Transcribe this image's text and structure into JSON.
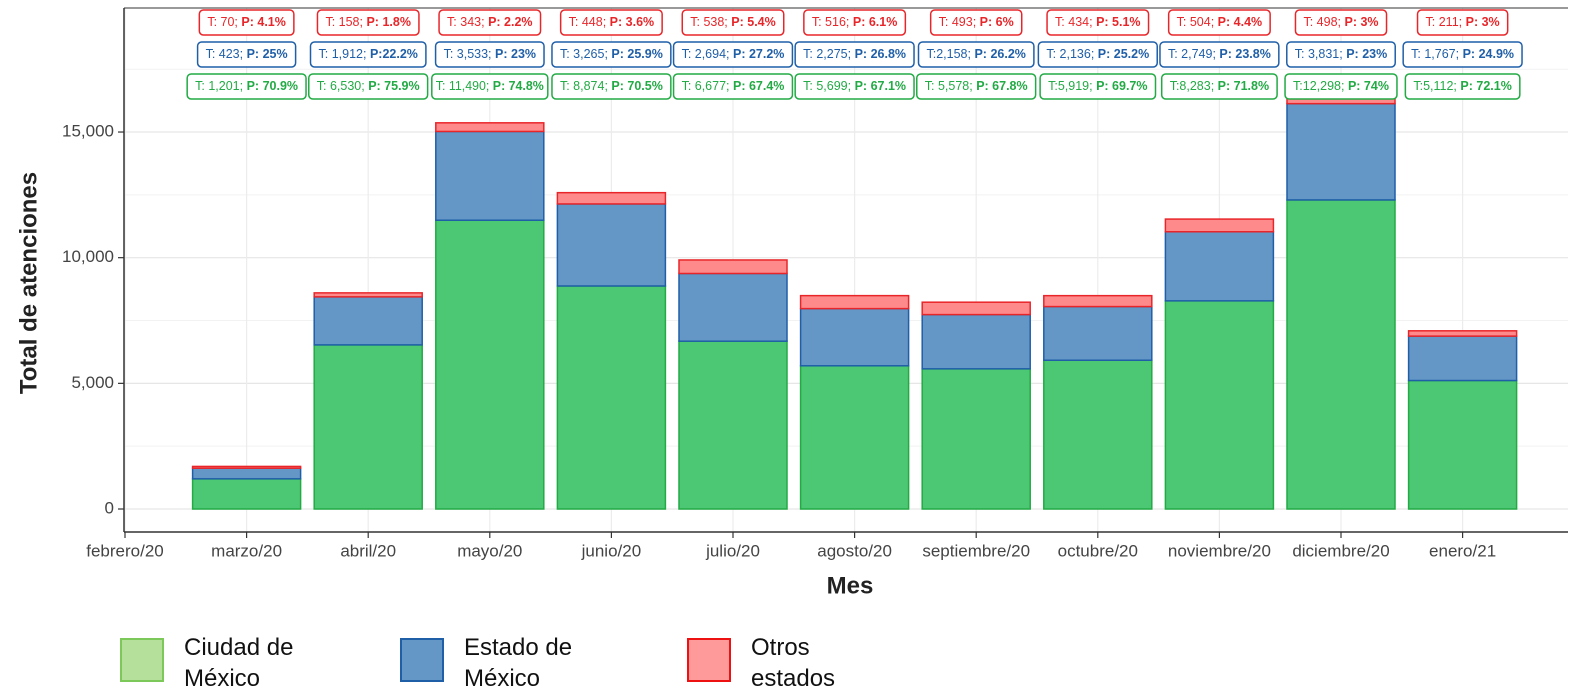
{
  "chart_data": {
    "type": "stacked_bar",
    "x_label": "Mes",
    "y_label": "Total de atenciones",
    "categories": [
      "febrero/20",
      "marzo/20",
      "abril/20",
      "mayo/20",
      "junio/20",
      "julio/20",
      "agosto/20",
      "septiembre/20",
      "octubre/20",
      "noviembre/20",
      "diciembre/20",
      "enero/21"
    ],
    "ylim": [
      -915,
      19935
    ],
    "yticks": [
      0,
      {
        "value": 5000,
        "label": "5,000"
      },
      {
        "value": 10000,
        "label": "10,000"
      },
      {
        "value": 15000,
        "label": "15,000"
      }
    ],
    "yminorticks": [
      2500,
      7500,
      12500,
      17500
    ],
    "grid": true,
    "legend": "bottom",
    "series": [
      {
        "name": "Ciudad de México",
        "color": "#4cc874",
        "stroke": "#22aa44",
        "legend_color": "#b5e09b",
        "legend_stroke": "#7cc95a",
        "values": [
          null,
          1201,
          6530,
          11490,
          8874,
          6677,
          5699,
          5578,
          5919,
          8283,
          12298,
          5112
        ],
        "value_labels": [
          null,
          "T: 1,201;",
          "T: 6,530;",
          "T: 11,490;",
          "T: 8,874;",
          "T: 6,677;",
          "T: 5,699;",
          "T: 5,578;",
          "T:5,919;",
          "T:8,283;",
          "T:12,298;",
          "T:5,112;"
        ],
        "percent_labels": [
          null,
          "P: 70.9%",
          "P: 75.9%",
          "P: 74.8%",
          "P: 70.5%",
          "P: 67.4%",
          "P: 67.1%",
          "P: 67.8%",
          "P: 69.7%",
          "P: 71.8%",
          "P: 74%",
          "P: 72.1%"
        ]
      },
      {
        "name": "Estado de México",
        "color": "#6496c6",
        "stroke": "#1f5fa8",
        "legend_color": "#6496c6",
        "legend_stroke": "#1f5fa8",
        "values": [
          null,
          423,
          1912,
          3533,
          3265,
          2694,
          2275,
          2158,
          2136,
          2749,
          3831,
          1767
        ],
        "value_labels": [
          null,
          "T: 423;",
          "T: 1,912;",
          "T: 3,533;",
          "T: 3,265;",
          "T: 2,694;",
          "T: 2,275;",
          "T:2,158;",
          "T: 2,136;",
          "T: 2,749;",
          "T: 3,831;",
          "T: 1,767;"
        ],
        "percent_labels": [
          null,
          "P: 25%",
          "P:22.2%",
          "P: 23%",
          "P: 25.9%",
          "P: 27.2%",
          "P: 26.8%",
          "P: 26.2%",
          "P: 25.2%",
          "P: 23.8%",
          "P: 23%",
          "P: 24.9%"
        ]
      },
      {
        "name": "Otros estados",
        "color": "#ff8a8c",
        "stroke": "#e8262a",
        "legend_color": "#ff9a9a",
        "legend_stroke": "#ee1111",
        "values": [
          null,
          70,
          158,
          343,
          448,
          538,
          516,
          493,
          434,
          504,
          498,
          211
        ],
        "value_labels": [
          null,
          "T: 70;",
          "T: 158;",
          "T: 343;",
          "T: 448;",
          "T: 538;",
          "T: 516;",
          "T: 493;",
          "T: 434;",
          "T: 504;",
          "T: 498;",
          "T: 211;"
        ],
        "percent_labels": [
          null,
          "P: 4.1%",
          "P: 1.8%",
          "P: 2.2%",
          "P: 3.6%",
          "P: 5.4%",
          "P: 6.1%",
          "P: 6%",
          "P: 5.1%",
          "P: 4.4%",
          "P: 3%",
          "P: 3%"
        ]
      }
    ]
  }
}
